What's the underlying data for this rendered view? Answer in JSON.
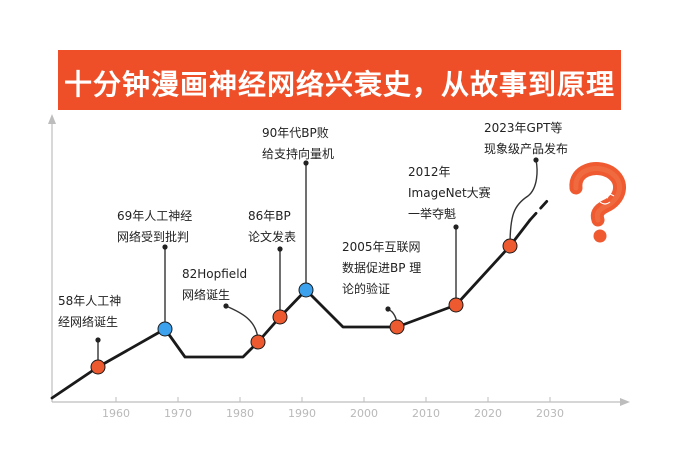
{
  "title": "十分钟漫画神经网络兴衰史，从故事到原理",
  "axis": {
    "ticks": [
      "1960",
      "1970",
      "1980",
      "1990",
      "2000",
      "2010",
      "2020",
      "2030"
    ]
  },
  "events": [
    {
      "year": 1958,
      "lines": [
        "58年人工神",
        "经网络诞生"
      ],
      "color": "#ee5a30"
    },
    {
      "year": 1969,
      "lines": [
        "69年人工神经",
        "网络受到批判"
      ],
      "color": "#3ca2ee"
    },
    {
      "year": 1982,
      "lines": [
        "82Hopfield",
        "网络诞生"
      ],
      "color": "#ee5a30"
    },
    {
      "year": 1986,
      "lines": [
        "86年BP",
        "论文发表"
      ],
      "color": "#ee5a30"
    },
    {
      "year": 1989,
      "lines": [
        "90年代BP败",
        "给支持向量机"
      ],
      "color": "#3ca2ee"
    },
    {
      "year": 2005,
      "lines": [
        "2005年互联网",
        "数据促进BP 理",
        "论的验证"
      ],
      "color": "#ee5a30"
    },
    {
      "year": 2012,
      "lines": [
        "2012年",
        "ImageNet大赛",
        "一举夺魁"
      ],
      "color": "#ee5a30"
    },
    {
      "year": 2023,
      "lines": [
        "2023年GPT等",
        "现象级产品发布"
      ],
      "color": "#ee5a30"
    }
  ],
  "colors": {
    "accent": "#ee4f28",
    "line": "#1a1a1a",
    "axis": "#bdbdbd",
    "question": "#ef5a30"
  },
  "icons": {
    "future": "question-mark-icon"
  }
}
